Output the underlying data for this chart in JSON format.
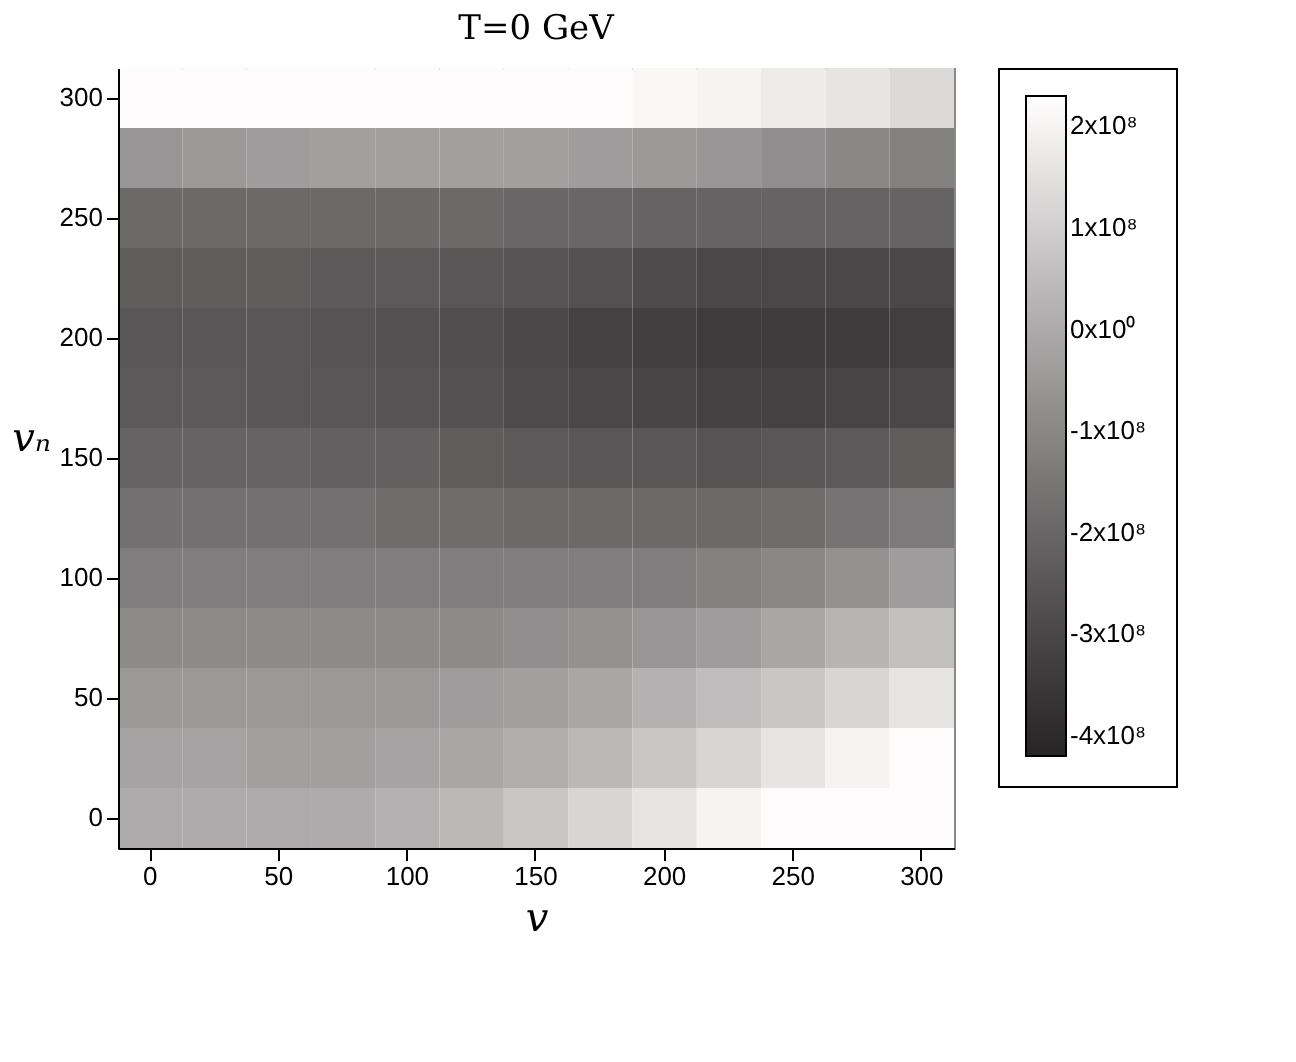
{
  "chart_data": {
    "type": "heatmap",
    "title": "T=0 GeV",
    "xlabel": "v",
    "ylabel": "vₙ",
    "categories": [
      "0",
      null,
      "50",
      null,
      "100",
      null,
      "150",
      null,
      "200",
      null,
      "250",
      null,
      "300"
    ],
    "y_categories": [
      "300",
      null,
      "250",
      null,
      "200",
      null,
      "150",
      null,
      "100",
      null,
      "50",
      null,
      "0"
    ],
    "clim": [
      -420000000.0,
      230000000.0
    ],
    "cticks": [
      {
        "value": -400000000.0,
        "label": "-4x10⁸"
      },
      {
        "value": -300000000.0,
        "label": "-3x10⁸"
      },
      {
        "value": -200000000.0,
        "label": "-2x10⁸"
      },
      {
        "value": -100000000.0,
        "label": "-1x10⁸"
      },
      {
        "value": 0,
        "label": "0x10⁰"
      },
      {
        "value": 100000000.0,
        "label": "1x10⁸"
      },
      {
        "value": 200000000.0,
        "label": "2x10⁸"
      }
    ],
    "cells": [
      [
        220000000.0,
        220000000.0,
        220000000.0,
        220000000.0,
        220000000.0,
        220000000.0,
        220000000.0,
        220000000.0,
        210000000.0,
        200000000.0,
        180000000.0,
        160000000.0,
        130000000.0
      ],
      [
        -60000000.0,
        -50000000.0,
        -40000000.0,
        -30000000.0,
        -30000000.0,
        -30000000.0,
        -30000000.0,
        -40000000.0,
        -50000000.0,
        -60000000.0,
        -80000000.0,
        -100000000.0,
        -120000000.0
      ],
      [
        -190000000.0,
        -190000000.0,
        -190000000.0,
        -190000000.0,
        -190000000.0,
        -190000000.0,
        -200000000.0,
        -200000000.0,
        -210000000.0,
        -210000000.0,
        -210000000.0,
        -210000000.0,
        -210000000.0
      ],
      [
        -230000000.0,
        -230000000.0,
        -230000000.0,
        -240000000.0,
        -240000000.0,
        -250000000.0,
        -260000000.0,
        -270000000.0,
        -290000000.0,
        -300000000.0,
        -300000000.0,
        -300000000.0,
        -300000000.0
      ],
      [
        -250000000.0,
        -250000000.0,
        -250000000.0,
        -260000000.0,
        -270000000.0,
        -280000000.0,
        -300000000.0,
        -320000000.0,
        -330000000.0,
        -340000000.0,
        -340000000.0,
        -340000000.0,
        -330000000.0
      ],
      [
        -240000000.0,
        -240000000.0,
        -250000000.0,
        -250000000.0,
        -260000000.0,
        -270000000.0,
        -290000000.0,
        -300000000.0,
        -310000000.0,
        -320000000.0,
        -320000000.0,
        -310000000.0,
        -300000000.0
      ],
      [
        -210000000.0,
        -210000000.0,
        -210000000.0,
        -220000000.0,
        -220000000.0,
        -230000000.0,
        -240000000.0,
        -250000000.0,
        -250000000.0,
        -260000000.0,
        -250000000.0,
        -240000000.0,
        -230000000.0
      ],
      [
        -170000000.0,
        -170000000.0,
        -170000000.0,
        -170000000.0,
        -180000000.0,
        -180000000.0,
        -190000000.0,
        -190000000.0,
        -190000000.0,
        -190000000.0,
        -180000000.0,
        -160000000.0,
        -140000000.0
      ],
      [
        -130000000.0,
        -130000000.0,
        -130000000.0,
        -130000000.0,
        -130000000.0,
        -130000000.0,
        -130000000.0,
        -130000000.0,
        -130000000.0,
        -120000000.0,
        -100000000.0,
        -70000000.0,
        -40000000.0
      ],
      [
        -90000000.0,
        -90000000.0,
        -90000000.0,
        -90000000.0,
        -90000000.0,
        -90000000.0,
        -80000000.0,
        -70000000.0,
        -60000000.0,
        -40000000.0,
        -10000000.0,
        30000000.0,
        60000000.0
      ],
      [
        -50000000.0,
        -50000000.0,
        -50000000.0,
        -50000000.0,
        -50000000.0,
        -40000000.0,
        -30000000.0,
        -10000000.0,
        20000000.0,
        50000000.0,
        80000000.0,
        120000000.0,
        160000000.0
      ],
      [
        -20000000.0,
        -20000000.0,
        -30000000.0,
        -30000000.0,
        -20000000.0,
        -10000000.0,
        10000000.0,
        40000000.0,
        80000000.0,
        120000000.0,
        160000000.0,
        200000000.0,
        220000000.0
      ],
      [
        0,
        0,
        0,
        0,
        20000000.0,
        40000000.0,
        80000000.0,
        120000000.0,
        160000000.0,
        200000000.0,
        220000000.0,
        220000000.0,
        220000000.0
      ]
    ]
  }
}
